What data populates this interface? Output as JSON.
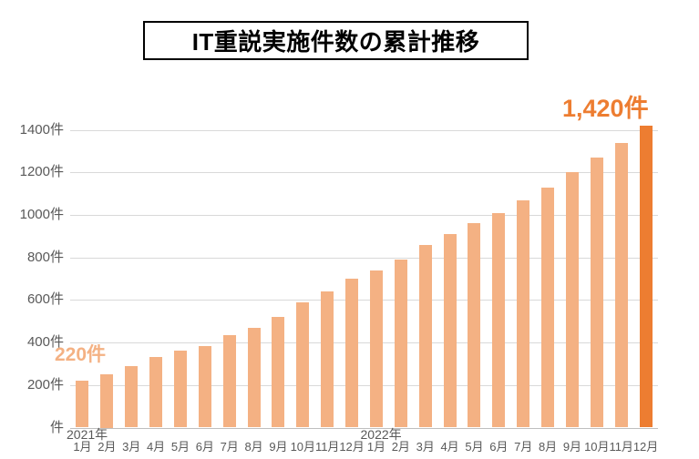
{
  "title": "IT重説実施件数の累計推移",
  "chart_data": {
    "type": "bar",
    "title": "IT重説実施件数の累計推移",
    "unit": "件",
    "categories": [
      "1月",
      "2月",
      "3月",
      "4月",
      "5月",
      "6月",
      "7月",
      "8月",
      "9月",
      "10月",
      "11月",
      "12月",
      "1月",
      "2月",
      "3月",
      "4月",
      "5月",
      "6月",
      "7月",
      "8月",
      "9月",
      "10月",
      "11月",
      "12月"
    ],
    "group_labels": [
      {
        "label": "2021年",
        "start_index": 0
      },
      {
        "label": "2022年",
        "start_index": 12
      }
    ],
    "values": [
      220,
      250,
      290,
      330,
      360,
      385,
      435,
      470,
      520,
      590,
      640,
      700,
      740,
      790,
      860,
      910,
      960,
      1010,
      1070,
      1130,
      1200,
      1270,
      1340,
      1420
    ],
    "highlight_index": 23,
    "y_ticks": [
      0,
      200,
      400,
      600,
      800,
      1000,
      1200,
      1400
    ],
    "y_tick_labels": [
      "件",
      "200件",
      "400件",
      "600件",
      "800件",
      "1000件",
      "1200件",
      "1400件"
    ],
    "ylim": [
      0,
      1460
    ],
    "grid": true,
    "legend": false,
    "data_labels": [
      {
        "index": 0,
        "text": "220件"
      },
      {
        "index": 23,
        "text": "1,420件"
      }
    ]
  },
  "colors": {
    "bar": "#F4B183",
    "bar_highlight": "#ED7D31",
    "data_label_first": "#F4B183",
    "data_label_last": "#ED7D31",
    "axis_text": "#595959",
    "gridline": "#D9D9D9",
    "axis_line": "#BFBFBF",
    "title_text": "#000000",
    "title_border": "#000000",
    "background": "#FFFFFF"
  }
}
